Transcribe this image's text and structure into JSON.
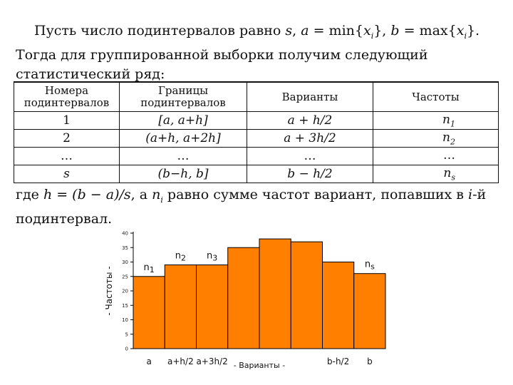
{
  "intro": {
    "t1": "Пусть число подинтервалов равно ",
    "t2": ", ",
    "t3": " = min{",
    "t4": "}, ",
    "t5": " = max{",
    "t6": "}. Тогда для группированной выборки получим следующий статистический ряд:",
    "s": "s",
    "a": "a",
    "b": "b",
    "x": "x",
    "i": "i"
  },
  "table": {
    "headers": [
      "Номера подинтервалов",
      "Границы подинтервалов",
      "Варианты",
      "Частоты"
    ],
    "rows": [
      [
        "1",
        "[a, a+h]",
        "a + h/2",
        "n",
        "1"
      ],
      [
        "2",
        "(a+h, a+2h]",
        "a + 3h/2",
        "n",
        "2"
      ],
      [
        "…",
        "…",
        "…",
        "…",
        ""
      ],
      [
        "s",
        "(b−h, b]",
        "b − h/2",
        "n",
        "s"
      ]
    ]
  },
  "after": {
    "t1": "где ",
    "formula": "h = (b − a)/s",
    "t2": ", а ",
    "n": "n",
    "i": "i",
    "t3": " равно сумме частот вариант, попавших в ",
    "t4": "-й подинтервал."
  },
  "chart_data": {
    "type": "bar",
    "values": [
      25,
      29,
      29,
      35,
      38,
      37,
      30,
      26
    ],
    "ylim": [
      0,
      40
    ],
    "yticks": [
      0,
      5,
      10,
      15,
      20,
      25,
      30,
      35,
      40
    ],
    "ylabel": "- Частоты -",
    "xlabel": "- Варианты -",
    "tick_labels": [
      {
        "bar": 0,
        "text": "a"
      },
      {
        "bar": 1,
        "text": "a+h/2"
      },
      {
        "bar": 2,
        "text": "a+3h/2"
      },
      {
        "bar": 6,
        "text": "b-h/2"
      },
      {
        "bar": 7,
        "text": "b"
      }
    ],
    "bar_labels": [
      {
        "bar": 0,
        "base": "n",
        "sub": "1"
      },
      {
        "bar": 1,
        "base": "n",
        "sub": "2"
      },
      {
        "bar": 2,
        "base": "n",
        "sub": "3"
      },
      {
        "bar": 7,
        "base": "n",
        "sub": "s"
      }
    ],
    "bar_color": "#ff8000",
    "edge_color": "#000000",
    "grid": false
  }
}
